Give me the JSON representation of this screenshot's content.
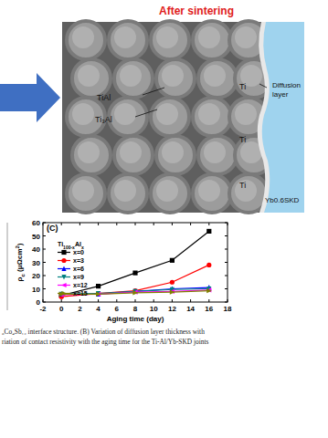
{
  "diagram": {
    "title": "After sintering",
    "labels": {
      "tial": "TiAl",
      "ti3al": "Ti₃Al",
      "ti": [
        "Ti",
        "Ti",
        "Ti"
      ],
      "diffusion": [
        "Diffusion",
        "layer"
      ],
      "skd": "Yb0.6SKD"
    }
  },
  "chart_data": {
    "type": "line",
    "panel": "(C)",
    "y_label": [
      "ρ",
      "c",
      " (μΩcm",
      "2",
      ")"
    ],
    "x_label": "Aging time (day)",
    "legend_title": [
      "Ti",
      "100-x",
      "Al",
      "x"
    ],
    "legend": "top-left",
    "xlim": [
      -2,
      18
    ],
    "xticks": [
      -2,
      0,
      2,
      4,
      6,
      8,
      10,
      12,
      14,
      16,
      18
    ],
    "ylim": [
      0,
      60
    ],
    "yticks": [
      0,
      10,
      20,
      30,
      40,
      50,
      60
    ],
    "x": [
      0,
      4,
      8,
      12,
      16
    ],
    "series": [
      {
        "name": "x=0",
        "color": "#000000",
        "marker": "square",
        "line_style": "solid",
        "values": [
          5,
          12,
          22,
          31.5,
          53.5
        ]
      },
      {
        "name": "x=3",
        "color": "#ff0000",
        "marker": "circle",
        "line_style": "solid",
        "values": [
          4,
          6.5,
          8.5,
          15,
          28
        ]
      },
      {
        "name": "x=6",
        "color": "#0000ff",
        "marker": "triangle-up",
        "line_style": "solid",
        "values": [
          6,
          6,
          8,
          10,
          11
        ]
      },
      {
        "name": "x=9",
        "color": "#008080",
        "marker": "triangle-down",
        "line_style": "solid",
        "values": [
          6,
          6.5,
          8,
          9.5,
          10
        ]
      },
      {
        "name": "x=12",
        "color": "#ff00ff",
        "marker": "triangle-left",
        "line_style": "solid",
        "values": [
          5.5,
          6,
          7.5,
          8,
          9
        ]
      },
      {
        "name": "x=15",
        "color": "#808000",
        "marker": "triangle-right",
        "line_style": "solid",
        "values": [
          6,
          6,
          7,
          7.5,
          8.5
        ]
      }
    ]
  },
  "caption": [
    "₆Co₄Sb₁₂ interface structure. (B) Variation of diffusion layer thickness with",
    "riation of contact resistivity with the aging time for the Ti-Al/Yb-SKD joints"
  ]
}
